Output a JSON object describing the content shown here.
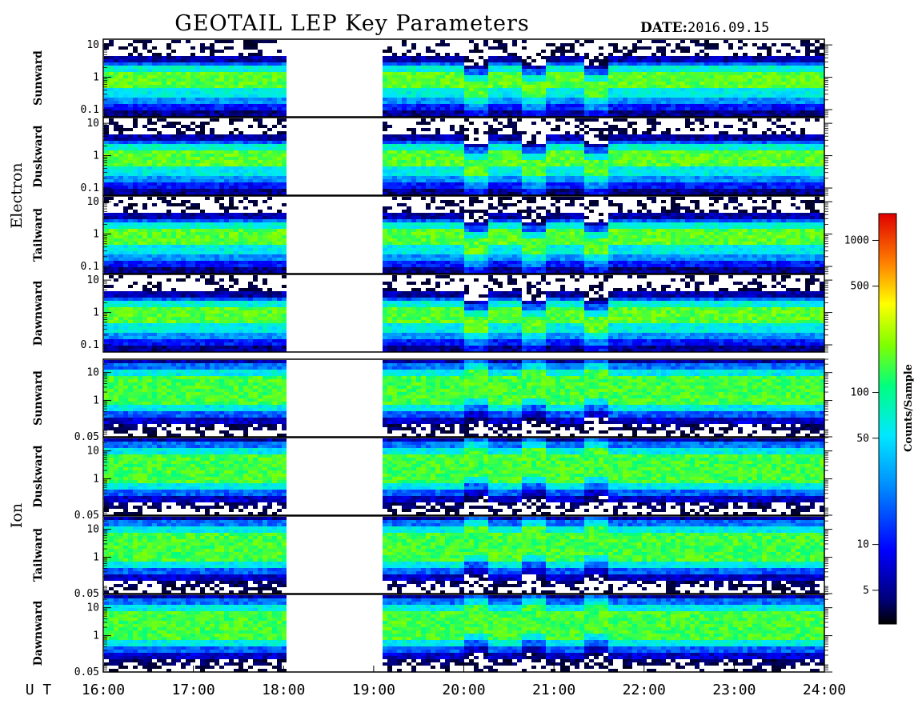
{
  "header": {
    "title": "GEOTAIL LEP Key Parameters",
    "date_label": "DATE:",
    "date_value": "2016.09.15"
  },
  "chart_data": {
    "type": "heatmap",
    "x_axis": {
      "label": "U T",
      "range_hours": [
        16,
        24
      ],
      "ticks": [
        "16:00",
        "17:00",
        "18:00",
        "19:00",
        "20:00",
        "21:00",
        "22:00",
        "23:00",
        "24:00"
      ],
      "data_gap_hours": [
        18.0,
        19.05
      ]
    },
    "groups": [
      {
        "name": "Electron",
        "panels": [
          {
            "label": "Sunward",
            "ylim": [
              0.06,
              15
            ],
            "yticks": [
              "10",
              "1",
              "0.1"
            ],
            "ytick_values": [
              10,
              1,
              0.1
            ]
          },
          {
            "label": "Duskward",
            "ylim": [
              0.06,
              15
            ],
            "yticks": [
              "10",
              "1",
              "0.1"
            ],
            "ytick_values": [
              10,
              1,
              0.1
            ]
          },
          {
            "label": "Tailward",
            "ylim": [
              0.06,
              15
            ],
            "yticks": [
              "10",
              "1",
              "0.1"
            ],
            "ytick_values": [
              10,
              1,
              0.1
            ]
          },
          {
            "label": "Dawnward",
            "ylim": [
              0.06,
              15
            ],
            "yticks": [
              "10",
              "1",
              "0.1"
            ],
            "ytick_values": [
              10,
              1,
              0.1
            ]
          }
        ]
      },
      {
        "name": "Ion",
        "panels": [
          {
            "label": "Sunward",
            "ylim": [
              0.05,
              30
            ],
            "yticks": [
              "10",
              "1",
              "0.05"
            ],
            "ytick_values": [
              10,
              1,
              0.05
            ]
          },
          {
            "label": "Duskward",
            "ylim": [
              0.05,
              30
            ],
            "yticks": [
              "10",
              "1",
              "0.05"
            ],
            "ytick_values": [
              10,
              1,
              0.05
            ]
          },
          {
            "label": "Tailward",
            "ylim": [
              0.05,
              30
            ],
            "yticks": [
              "10",
              "1",
              "0.05"
            ],
            "ytick_values": [
              10,
              1,
              0.05
            ]
          },
          {
            "label": "Dawnward",
            "ylim": [
              0.05,
              30
            ],
            "yticks": [
              "10",
              "1",
              "0.05"
            ],
            "ytick_values": [
              10,
              1,
              0.05
            ]
          }
        ]
      }
    ],
    "colorbar": {
      "label": "Counts/Sample",
      "scale": "log",
      "range": [
        3,
        1500
      ],
      "ticks": [
        "1000",
        "500",
        "100",
        "50",
        "10",
        "5"
      ],
      "tick_values": [
        1000,
        500,
        100,
        50,
        10,
        5
      ],
      "colors": [
        "#000000",
        "#00007a",
        "#0000ff",
        "#0080ff",
        "#00e0ff",
        "#00ff80",
        "#80ff00",
        "#ffff00",
        "#ff8000",
        "#ff0000",
        "#e00000"
      ]
    }
  }
}
